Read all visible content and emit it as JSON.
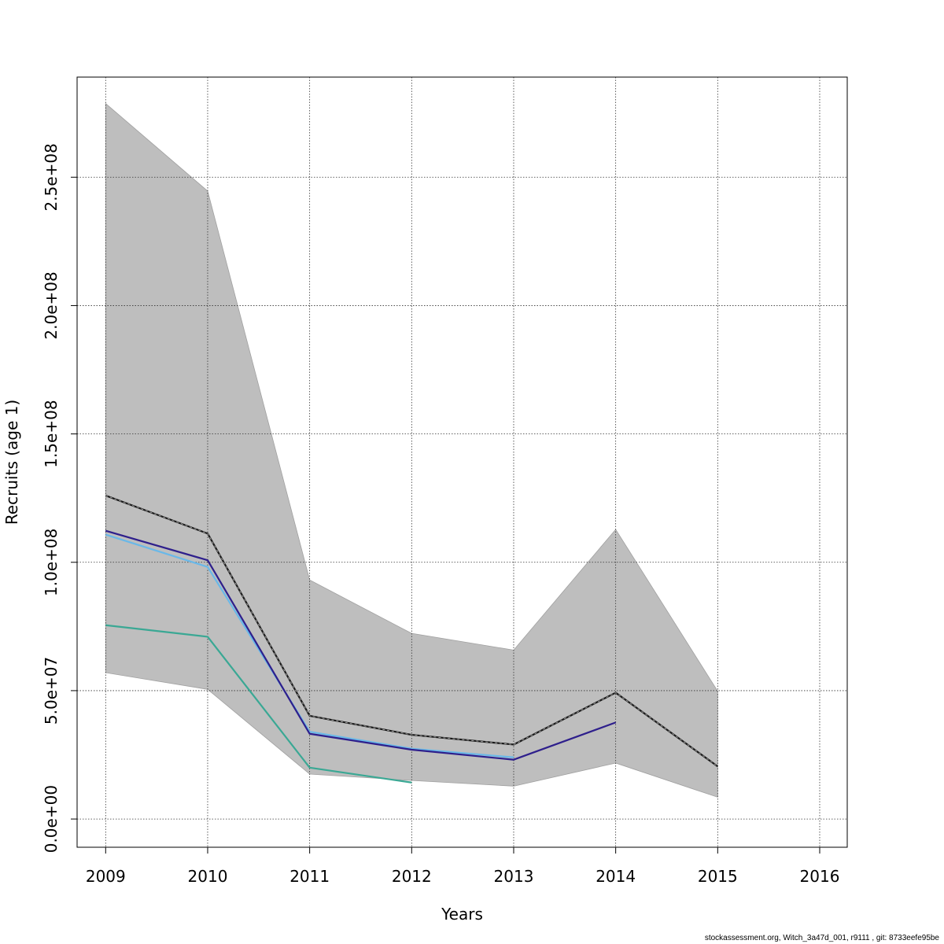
{
  "chart_data": {
    "type": "line",
    "title": "",
    "xlabel": "Years",
    "ylabel": "Recruits (age 1)",
    "x": [
      2009,
      2010,
      2011,
      2012,
      2013,
      2014,
      2015,
      2016
    ],
    "x_tick_labels": [
      "2009",
      "2010",
      "2011",
      "2012",
      "2013",
      "2014",
      "2015",
      "2016"
    ],
    "y_ticks": [
      0,
      50000000,
      100000000,
      150000000,
      200000000,
      250000000
    ],
    "y_tick_labels": [
      "0.0e+00",
      "5.0e+07",
      "1.0e+08",
      "1.5e+08",
      "2.0e+08",
      "2.5e+08"
    ],
    "xlim": [
      2008.72,
      2016.27
    ],
    "ylim": [
      -11000000,
      289000000
    ],
    "grid": true,
    "confidence_band": {
      "x": [
        2009,
        2010,
        2011,
        2012,
        2013,
        2014,
        2015
      ],
      "lower": [
        57000000,
        50500000,
        17500000,
        15000000,
        12800000,
        21800000,
        8500000
      ],
      "upper": [
        278700000,
        244600000,
        93100000,
        72300000,
        65800000,
        112800000,
        49800000
      ],
      "color": "#bebebe"
    },
    "series": [
      {
        "x": [
          2009,
          2010,
          2011,
          2012,
          2013,
          2014,
          2015
        ],
        "values": [
          126000000,
          111200000,
          40200000,
          32800000,
          29000000,
          49200000,
          20500000
        ],
        "color": "#1a1a1a",
        "dashed": true
      },
      {
        "x": [
          2009,
          2010,
          2011,
          2012,
          2013,
          2014
        ],
        "values": [
          112300000,
          100800000,
          33200000,
          27000000,
          23100000,
          37600000
        ],
        "color": "#2e1f8c",
        "dashed": false
      },
      {
        "x": [
          2009,
          2010,
          2011,
          2012,
          2013
        ],
        "values": [
          110800000,
          98200000,
          34000000,
          27400000,
          24000000
        ],
        "color": "#6ab8e8",
        "dashed": false
      },
      {
        "x": [
          2009,
          2010,
          2011,
          2012
        ],
        "values": [
          75500000,
          71000000,
          20000000,
          14200000
        ],
        "color": "#3aa894",
        "dashed": false
      }
    ]
  },
  "footer": "stockassessment.org, Witch_3a47d_001, r9111 , git: 8733eefe95be"
}
